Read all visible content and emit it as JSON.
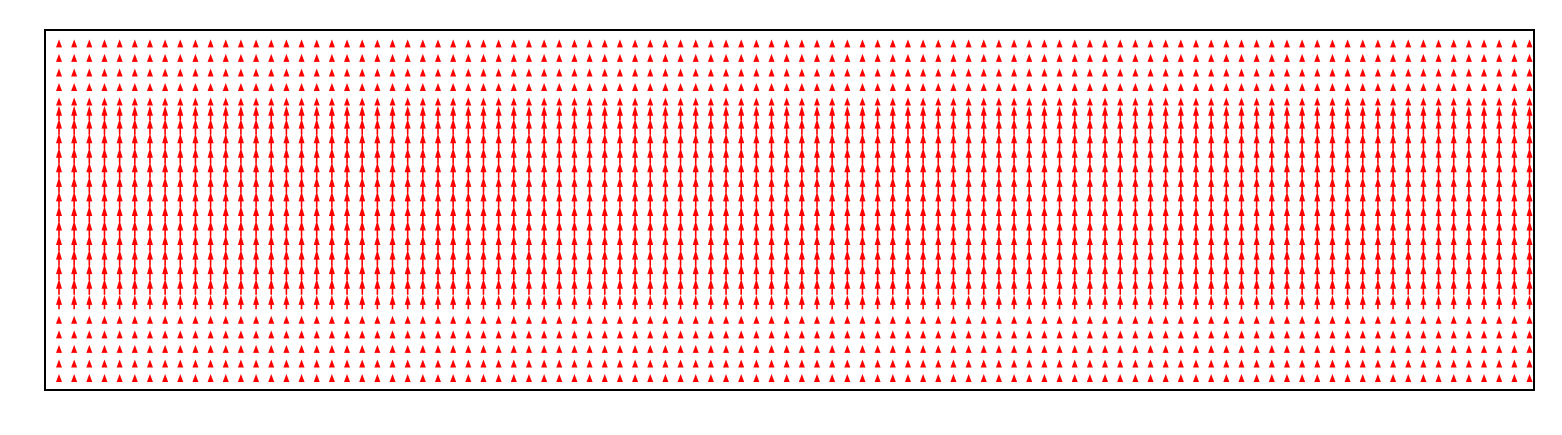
{
  "chart_data": {
    "type": "quiver",
    "title": "",
    "xlabel": "",
    "ylabel": "",
    "axes_visible": false,
    "grid": false,
    "legend": "none",
    "columns": 98,
    "rows": 24,
    "direction_deg": 90,
    "arrow_color": "#ff0000",
    "frame_color": "#000000",
    "background_color": "#ffffff",
    "magnitude_profile": [
      0.5,
      0.5,
      0.5,
      0.5,
      0.5,
      0.9,
      1.0,
      1.0,
      1.0,
      1.0,
      1.0,
      1.0,
      1.0,
      1.0,
      1.0,
      1.0,
      1.0,
      1.0,
      0.9,
      0.5,
      0.5,
      0.5,
      0.5,
      0.5
    ]
  }
}
